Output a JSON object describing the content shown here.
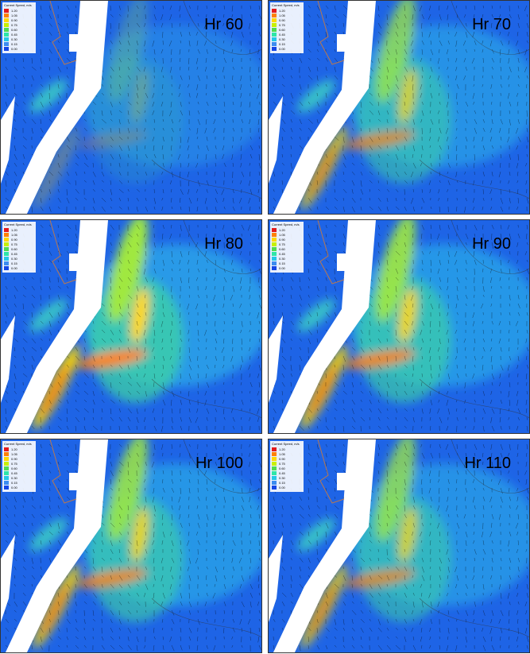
{
  "panels": [
    {
      "label": "Hr 60"
    },
    {
      "label": "Hr 70"
    },
    {
      "label": "Hr 80"
    },
    {
      "label": "Hr 90"
    },
    {
      "label": "Hr 100"
    },
    {
      "label": "Hr 110"
    }
  ],
  "legend": {
    "title": "Current Speed, m/s",
    "levels": [
      "1.20",
      "1.05",
      "0.90",
      "0.75",
      "0.60",
      "0.45",
      "0.30",
      "0.15",
      "0.00"
    ]
  }
}
